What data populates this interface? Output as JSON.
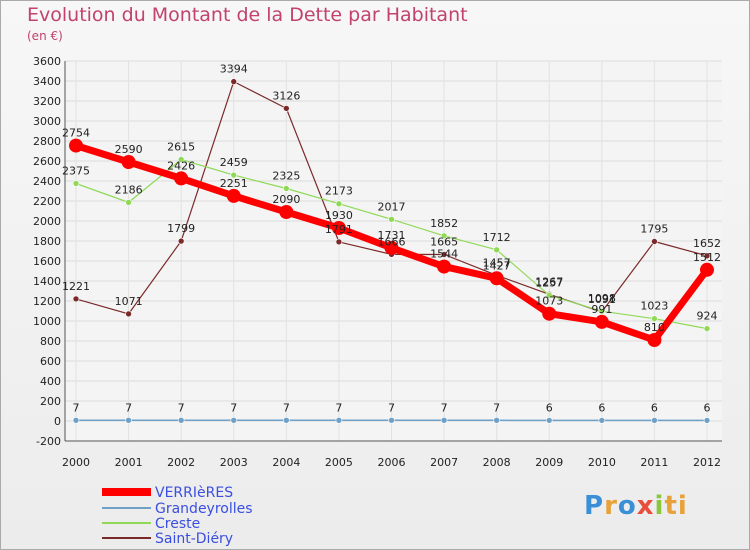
{
  "chart_data": {
    "type": "line",
    "title": "Evolution du Montant de la Dette par Habitant",
    "subtitle": "(en €)",
    "x": [
      "2000",
      "2001",
      "2002",
      "2003",
      "2004",
      "2005",
      "2006",
      "2007",
      "2008",
      "2009",
      "2010",
      "2011",
      "2012"
    ],
    "ylim": [
      -200,
      3600
    ],
    "yticks": [
      -200,
      0,
      200,
      400,
      600,
      800,
      1000,
      1200,
      1400,
      1600,
      1800,
      2000,
      2200,
      2400,
      2600,
      2800,
      3000,
      3200,
      3400,
      3600
    ],
    "grid": true,
    "legend_position": "bottom-left",
    "series": [
      {
        "name": "VERRIèRES",
        "color": "#ff0000",
        "values": [
          2754,
          2590,
          2426,
          2251,
          2090,
          1930,
          1731,
          1544,
          1427,
          1073,
          991,
          810,
          1512
        ]
      },
      {
        "name": "Grandeyrolles",
        "color": "#6fa1c8",
        "values": [
          7,
          7,
          7,
          7,
          7,
          7,
          7,
          7,
          7,
          6,
          6,
          6,
          6
        ]
      },
      {
        "name": "Creste",
        "color": "#8fd957",
        "values": [
          2375,
          2186,
          2615,
          2459,
          2325,
          2173,
          2017,
          1852,
          1712,
          1257,
          1098,
          1023,
          924
        ]
      },
      {
        "name": "Saint-Diéry",
        "color": "#7b2a2a",
        "values": [
          1221,
          1071,
          1799,
          3394,
          3126,
          1791,
          1666,
          1665,
          1457,
          1267,
          1091,
          1795,
          1652
        ]
      }
    ]
  },
  "logo": {
    "letters": [
      "P",
      "r",
      "o",
      "x",
      "i",
      "ti"
    ]
  }
}
